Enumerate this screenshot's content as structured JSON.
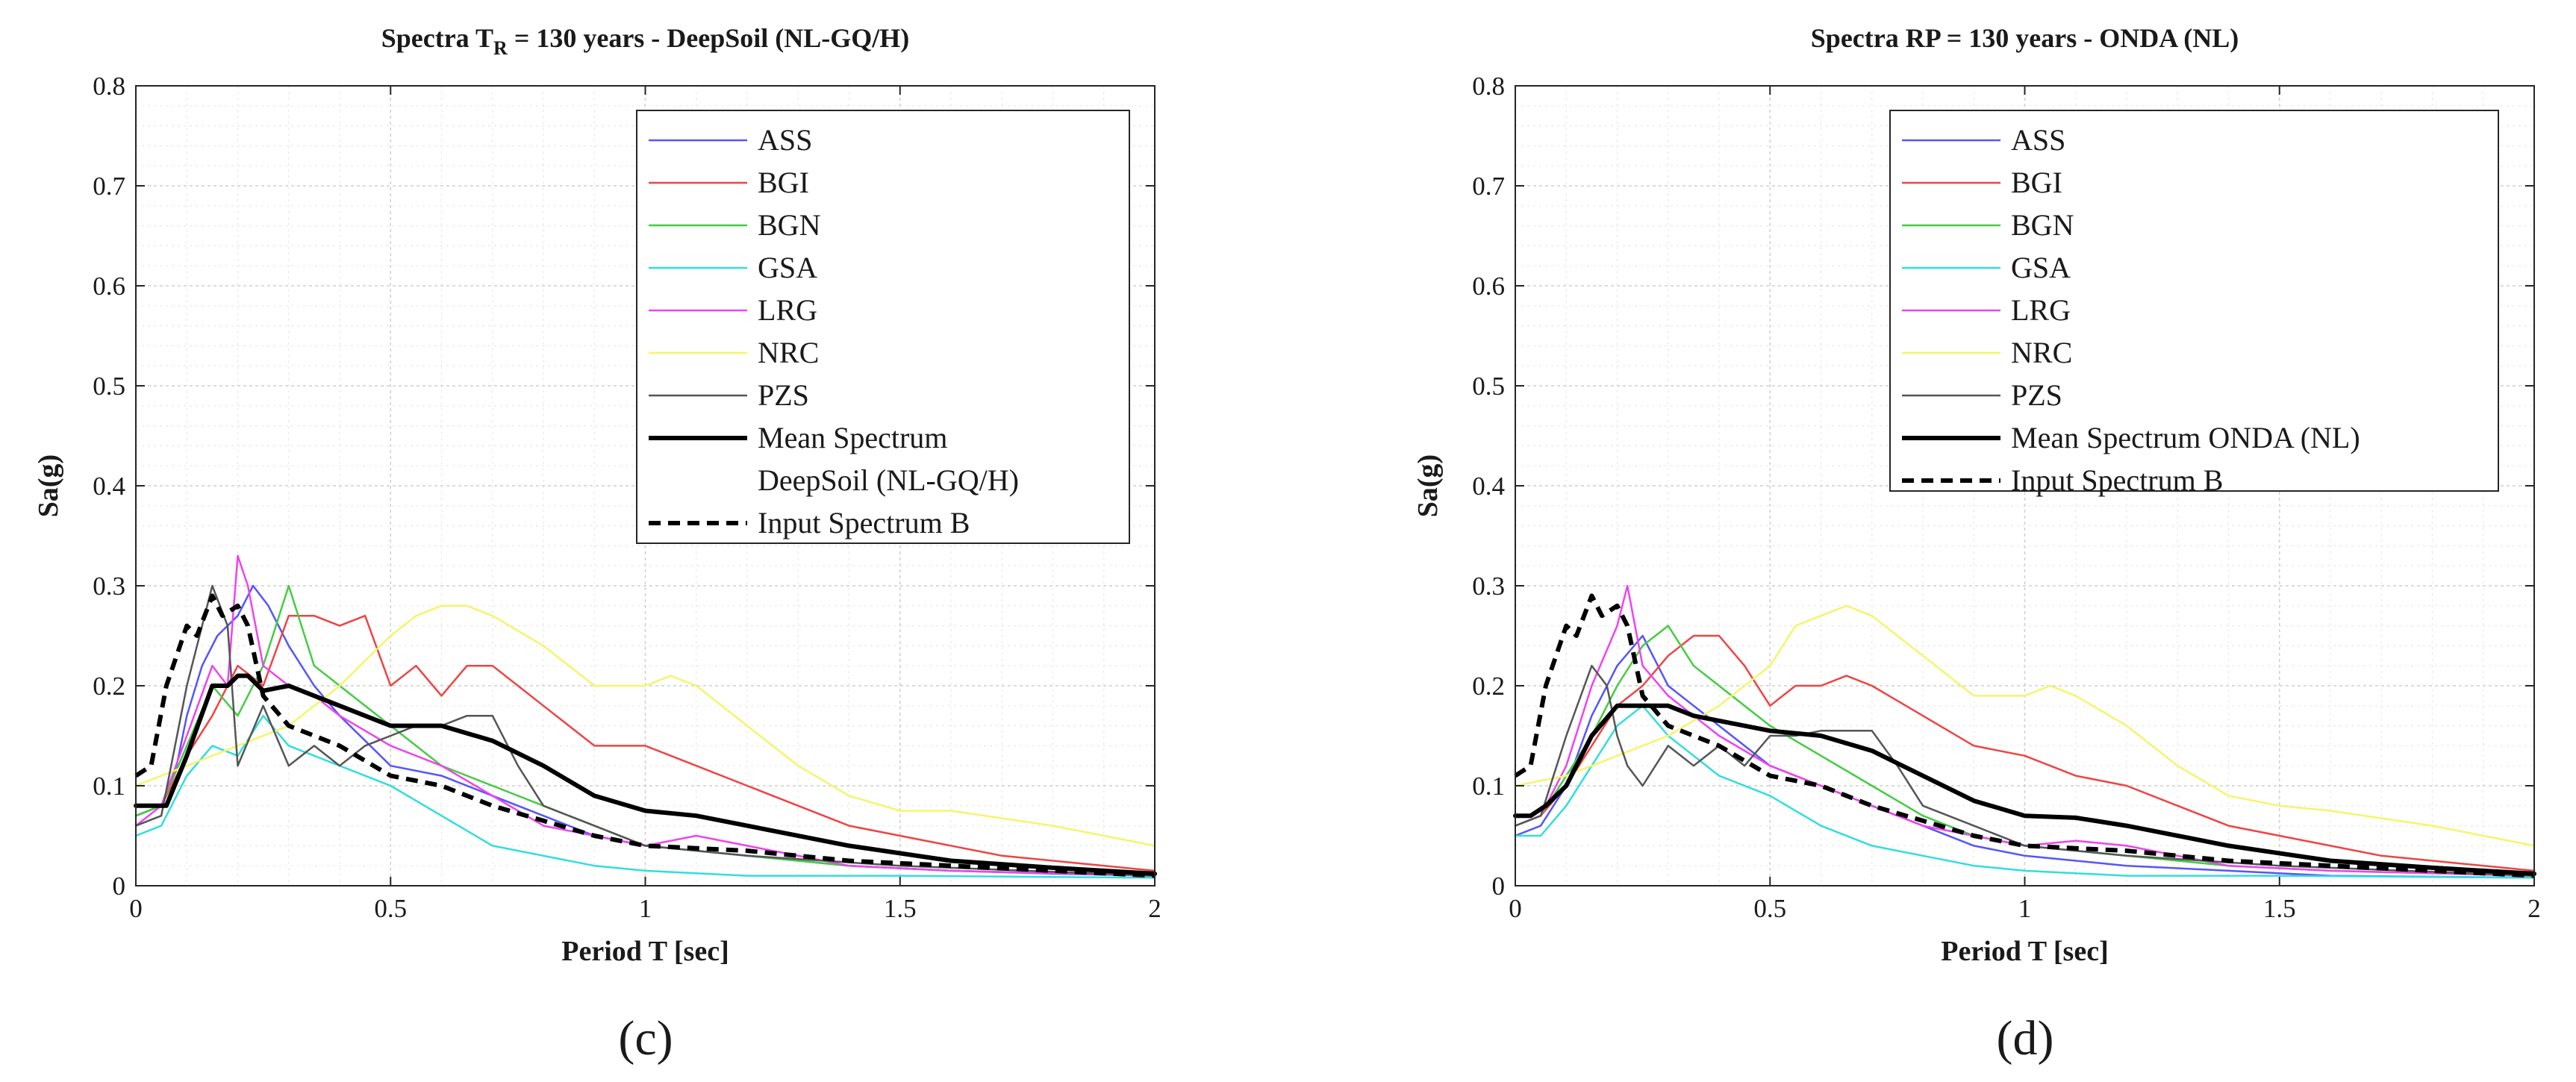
{
  "chart_data": [
    {
      "type": "line",
      "title": "Spectra T",
      "title_sub": "R",
      "title_rest": " = 130 years - DeepSoil (NL-GQ/H)",
      "xlabel": "Period T [sec]",
      "ylabel": "Sa(g)",
      "xlim": [
        0,
        2
      ],
      "ylim": [
        0,
        0.8
      ],
      "xticks": [
        0,
        0.5,
        1,
        1.5,
        2
      ],
      "xtick_labels": [
        "0",
        "0.5",
        "1",
        "1.5",
        "2"
      ],
      "yticks": [
        0,
        0.1,
        0.2,
        0.3,
        0.4,
        0.5,
        0.6,
        0.7,
        0.8
      ],
      "ytick_labels": [
        "0",
        "0.1",
        "0.2",
        "0.3",
        "0.4",
        "0.5",
        "0.6",
        "0.7",
        "0.8"
      ],
      "grid": true,
      "legend_position": "top-right",
      "panel_label": "(c)",
      "series": [
        {
          "name": "ASS",
          "color": "#5555ff",
          "style": "thin",
          "x": [
            0,
            0.05,
            0.08,
            0.1,
            0.13,
            0.16,
            0.2,
            0.23,
            0.26,
            0.3,
            0.35,
            0.4,
            0.5,
            0.6,
            0.7,
            0.8,
            0.9,
            1.0,
            1.1,
            1.2,
            1.4,
            1.6,
            1.8,
            2.0
          ],
          "y": [
            0.07,
            0.08,
            0.12,
            0.17,
            0.22,
            0.25,
            0.27,
            0.3,
            0.28,
            0.24,
            0.2,
            0.17,
            0.12,
            0.11,
            0.09,
            0.07,
            0.05,
            0.04,
            0.035,
            0.03,
            0.02,
            0.015,
            0.012,
            0.01
          ]
        },
        {
          "name": "BGI",
          "color": "#ee4444",
          "style": "thin",
          "x": [
            0,
            0.05,
            0.1,
            0.15,
            0.2,
            0.25,
            0.3,
            0.35,
            0.4,
            0.45,
            0.5,
            0.55,
            0.6,
            0.65,
            0.7,
            0.75,
            0.8,
            0.9,
            1.0,
            1.1,
            1.2,
            1.3,
            1.4,
            1.5,
            1.7,
            2.0
          ],
          "y": [
            0.07,
            0.08,
            0.13,
            0.17,
            0.22,
            0.2,
            0.27,
            0.27,
            0.26,
            0.27,
            0.2,
            0.22,
            0.19,
            0.22,
            0.22,
            0.2,
            0.18,
            0.14,
            0.14,
            0.12,
            0.1,
            0.08,
            0.06,
            0.05,
            0.03,
            0.015
          ]
        },
        {
          "name": "BGN",
          "color": "#44cc44",
          "style": "thin",
          "x": [
            0,
            0.05,
            0.1,
            0.15,
            0.2,
            0.25,
            0.3,
            0.35,
            0.4,
            0.5,
            0.6,
            0.7,
            0.8,
            0.9,
            1.0,
            1.2,
            1.4,
            1.6,
            2.0
          ],
          "y": [
            0.07,
            0.08,
            0.14,
            0.2,
            0.17,
            0.22,
            0.3,
            0.22,
            0.2,
            0.16,
            0.12,
            0.1,
            0.08,
            0.06,
            0.04,
            0.03,
            0.02,
            0.015,
            0.01
          ]
        },
        {
          "name": "GSA",
          "color": "#33dddd",
          "style": "thin",
          "x": [
            0,
            0.05,
            0.1,
            0.15,
            0.2,
            0.25,
            0.3,
            0.35,
            0.4,
            0.5,
            0.6,
            0.7,
            0.8,
            0.9,
            1.0,
            1.2,
            1.5,
            2.0
          ],
          "y": [
            0.05,
            0.06,
            0.11,
            0.14,
            0.13,
            0.17,
            0.14,
            0.13,
            0.12,
            0.1,
            0.07,
            0.04,
            0.03,
            0.02,
            0.015,
            0.01,
            0.01,
            0.008
          ]
        },
        {
          "name": "LRG",
          "color": "#ee44ee",
          "style": "thin",
          "x": [
            0,
            0.05,
            0.1,
            0.15,
            0.18,
            0.2,
            0.22,
            0.25,
            0.3,
            0.35,
            0.4,
            0.5,
            0.6,
            0.7,
            0.8,
            0.9,
            1.0,
            1.1,
            1.2,
            1.4,
            1.6,
            2.0
          ],
          "y": [
            0.06,
            0.08,
            0.15,
            0.22,
            0.2,
            0.33,
            0.3,
            0.22,
            0.2,
            0.19,
            0.17,
            0.14,
            0.12,
            0.09,
            0.06,
            0.05,
            0.04,
            0.05,
            0.04,
            0.02,
            0.015,
            0.01
          ]
        },
        {
          "name": "NRC",
          "color": "#f5f56a",
          "style": "thin",
          "x": [
            0,
            0.1,
            0.2,
            0.3,
            0.4,
            0.5,
            0.55,
            0.6,
            0.65,
            0.7,
            0.8,
            0.9,
            1.0,
            1.05,
            1.1,
            1.2,
            1.3,
            1.4,
            1.5,
            1.6,
            1.8,
            2.0
          ],
          "y": [
            0.1,
            0.12,
            0.14,
            0.16,
            0.2,
            0.25,
            0.27,
            0.28,
            0.28,
            0.27,
            0.24,
            0.2,
            0.2,
            0.21,
            0.2,
            0.16,
            0.12,
            0.09,
            0.075,
            0.075,
            0.06,
            0.04
          ]
        },
        {
          "name": "PZS",
          "color": "#555555",
          "style": "thin",
          "x": [
            0,
            0.05,
            0.1,
            0.15,
            0.18,
            0.2,
            0.25,
            0.3,
            0.35,
            0.4,
            0.45,
            0.5,
            0.55,
            0.6,
            0.65,
            0.7,
            0.75,
            0.8,
            0.9,
            1.0,
            1.2,
            1.5,
            2.0
          ],
          "y": [
            0.06,
            0.07,
            0.2,
            0.3,
            0.26,
            0.12,
            0.18,
            0.12,
            0.14,
            0.12,
            0.14,
            0.15,
            0.16,
            0.16,
            0.17,
            0.17,
            0.12,
            0.08,
            0.06,
            0.04,
            0.03,
            0.02,
            0.01
          ]
        },
        {
          "name": "Mean Spectrum DeepSoil (NL-GQ/H)",
          "legend_lines": [
            "Mean Spectrum",
            "DeepSoil (NL-GQ/H)"
          ],
          "color": "#000000",
          "style": "thick",
          "x": [
            0,
            0.03,
            0.06,
            0.1,
            0.15,
            0.18,
            0.2,
            0.22,
            0.25,
            0.3,
            0.35,
            0.4,
            0.5,
            0.6,
            0.7,
            0.8,
            0.9,
            1.0,
            1.1,
            1.2,
            1.4,
            1.6,
            1.8,
            2.0
          ],
          "y": [
            0.08,
            0.08,
            0.08,
            0.13,
            0.2,
            0.2,
            0.21,
            0.21,
            0.195,
            0.2,
            0.19,
            0.18,
            0.16,
            0.16,
            0.145,
            0.12,
            0.09,
            0.075,
            0.07,
            0.06,
            0.04,
            0.025,
            0.018,
            0.012
          ]
        },
        {
          "name": "Input Spectrum B",
          "color": "#000000",
          "style": "dashed",
          "x": [
            0,
            0.03,
            0.06,
            0.1,
            0.12,
            0.15,
            0.17,
            0.2,
            0.22,
            0.25,
            0.3,
            0.4,
            0.5,
            0.6,
            0.7,
            0.8,
            0.9,
            1.0,
            1.2,
            1.4,
            1.6,
            1.8,
            2.0
          ],
          "y": [
            0.11,
            0.12,
            0.2,
            0.26,
            0.25,
            0.29,
            0.27,
            0.28,
            0.26,
            0.19,
            0.16,
            0.14,
            0.11,
            0.1,
            0.08,
            0.065,
            0.05,
            0.04,
            0.035,
            0.025,
            0.02,
            0.015,
            0.01
          ]
        }
      ]
    },
    {
      "type": "line",
      "title": "Spectra RP = 130 years - ONDA (NL)",
      "title_sub": "",
      "title_rest": "",
      "xlabel": "Period T [sec]",
      "ylabel": "Sa(g)",
      "xlim": [
        0,
        2
      ],
      "ylim": [
        0,
        0.8
      ],
      "xticks": [
        0,
        0.5,
        1,
        1.5,
        2
      ],
      "xtick_labels": [
        "0",
        "0.5",
        "1",
        "1.5",
        "2"
      ],
      "yticks": [
        0,
        0.1,
        0.2,
        0.3,
        0.4,
        0.5,
        0.6,
        0.7,
        0.8
      ],
      "ytick_labels": [
        "0",
        "0.1",
        "0.2",
        "0.3",
        "0.4",
        "0.5",
        "0.6",
        "0.7",
        "0.8"
      ],
      "grid": true,
      "legend_position": "top-right",
      "panel_label": "(d)",
      "series": [
        {
          "name": "ASS",
          "color": "#5555ff",
          "style": "thin",
          "x": [
            0,
            0.05,
            0.1,
            0.15,
            0.2,
            0.25,
            0.3,
            0.35,
            0.4,
            0.5,
            0.6,
            0.7,
            0.8,
            0.9,
            1.0,
            1.2,
            1.4,
            1.6,
            2.0
          ],
          "y": [
            0.05,
            0.06,
            0.1,
            0.17,
            0.22,
            0.25,
            0.2,
            0.18,
            0.16,
            0.12,
            0.1,
            0.08,
            0.06,
            0.04,
            0.03,
            0.02,
            0.015,
            0.01,
            0.008
          ]
        },
        {
          "name": "BGI",
          "color": "#ee4444",
          "style": "thin",
          "x": [
            0,
            0.05,
            0.1,
            0.15,
            0.2,
            0.25,
            0.3,
            0.35,
            0.4,
            0.45,
            0.5,
            0.55,
            0.6,
            0.65,
            0.7,
            0.8,
            0.9,
            1.0,
            1.1,
            1.2,
            1.3,
            1.4,
            1.5,
            1.7,
            2.0
          ],
          "y": [
            0.06,
            0.07,
            0.1,
            0.14,
            0.18,
            0.2,
            0.23,
            0.25,
            0.25,
            0.22,
            0.18,
            0.2,
            0.2,
            0.21,
            0.2,
            0.17,
            0.14,
            0.13,
            0.11,
            0.1,
            0.08,
            0.06,
            0.05,
            0.03,
            0.015
          ]
        },
        {
          "name": "BGN",
          "color": "#44cc44",
          "style": "thin",
          "x": [
            0,
            0.05,
            0.1,
            0.15,
            0.2,
            0.25,
            0.3,
            0.35,
            0.4,
            0.5,
            0.6,
            0.7,
            0.8,
            0.9,
            1.0,
            1.2,
            1.4,
            1.6,
            2.0
          ],
          "y": [
            0.06,
            0.07,
            0.11,
            0.15,
            0.2,
            0.24,
            0.26,
            0.22,
            0.2,
            0.16,
            0.13,
            0.1,
            0.07,
            0.05,
            0.04,
            0.03,
            0.02,
            0.015,
            0.01
          ]
        },
        {
          "name": "GSA",
          "color": "#33dddd",
          "style": "thin",
          "x": [
            0,
            0.05,
            0.1,
            0.15,
            0.2,
            0.25,
            0.3,
            0.35,
            0.4,
            0.5,
            0.6,
            0.7,
            0.8,
            0.9,
            1.0,
            1.2,
            1.5,
            2.0
          ],
          "y": [
            0.05,
            0.05,
            0.08,
            0.12,
            0.16,
            0.18,
            0.15,
            0.13,
            0.11,
            0.09,
            0.06,
            0.04,
            0.03,
            0.02,
            0.015,
            0.01,
            0.01,
            0.008
          ]
        },
        {
          "name": "LRG",
          "color": "#ee44ee",
          "style": "thin",
          "x": [
            0,
            0.05,
            0.1,
            0.15,
            0.2,
            0.22,
            0.25,
            0.3,
            0.35,
            0.4,
            0.5,
            0.6,
            0.7,
            0.8,
            0.9,
            1.0,
            1.1,
            1.2,
            1.4,
            1.6,
            2.0
          ],
          "y": [
            0.06,
            0.07,
            0.12,
            0.2,
            0.26,
            0.3,
            0.22,
            0.19,
            0.17,
            0.15,
            0.12,
            0.1,
            0.08,
            0.06,
            0.05,
            0.04,
            0.045,
            0.04,
            0.02,
            0.015,
            0.01
          ]
        },
        {
          "name": "NRC",
          "color": "#f5f56a",
          "style": "thin",
          "x": [
            0,
            0.1,
            0.2,
            0.3,
            0.4,
            0.5,
            0.55,
            0.6,
            0.65,
            0.7,
            0.8,
            0.9,
            1.0,
            1.05,
            1.1,
            1.2,
            1.3,
            1.4,
            1.5,
            1.6,
            1.8,
            2.0
          ],
          "y": [
            0.1,
            0.11,
            0.13,
            0.15,
            0.18,
            0.22,
            0.26,
            0.27,
            0.28,
            0.27,
            0.23,
            0.19,
            0.19,
            0.2,
            0.19,
            0.16,
            0.12,
            0.09,
            0.08,
            0.075,
            0.06,
            0.04
          ]
        },
        {
          "name": "PZS",
          "color": "#555555",
          "style": "thin",
          "x": [
            0,
            0.05,
            0.1,
            0.15,
            0.18,
            0.2,
            0.22,
            0.25,
            0.3,
            0.35,
            0.4,
            0.45,
            0.5,
            0.55,
            0.6,
            0.65,
            0.7,
            0.75,
            0.8,
            0.9,
            1.0,
            1.2,
            1.5,
            2.0
          ],
          "y": [
            0.06,
            0.07,
            0.15,
            0.22,
            0.2,
            0.15,
            0.12,
            0.1,
            0.14,
            0.12,
            0.14,
            0.12,
            0.15,
            0.15,
            0.155,
            0.155,
            0.155,
            0.12,
            0.08,
            0.06,
            0.04,
            0.03,
            0.02,
            0.01
          ]
        },
        {
          "name": "Mean Spectrum ONDA (NL)",
          "legend_lines": [
            "Mean Spectrum ONDA (NL)"
          ],
          "color": "#000000",
          "style": "thick",
          "x": [
            0,
            0.03,
            0.06,
            0.1,
            0.15,
            0.2,
            0.25,
            0.3,
            0.35,
            0.4,
            0.5,
            0.6,
            0.7,
            0.8,
            0.9,
            1.0,
            1.1,
            1.2,
            1.4,
            1.6,
            1.8,
            2.0
          ],
          "y": [
            0.07,
            0.07,
            0.08,
            0.1,
            0.15,
            0.18,
            0.18,
            0.18,
            0.17,
            0.165,
            0.155,
            0.15,
            0.135,
            0.11,
            0.085,
            0.07,
            0.068,
            0.06,
            0.04,
            0.025,
            0.018,
            0.012
          ]
        },
        {
          "name": "Input Spectrum B",
          "color": "#000000",
          "style": "dashed",
          "x": [
            0,
            0.03,
            0.06,
            0.1,
            0.12,
            0.15,
            0.17,
            0.2,
            0.22,
            0.25,
            0.3,
            0.4,
            0.5,
            0.6,
            0.7,
            0.8,
            0.9,
            1.0,
            1.2,
            1.4,
            1.6,
            1.8,
            2.0
          ],
          "y": [
            0.11,
            0.12,
            0.2,
            0.26,
            0.25,
            0.29,
            0.27,
            0.28,
            0.26,
            0.19,
            0.16,
            0.14,
            0.11,
            0.1,
            0.08,
            0.065,
            0.05,
            0.04,
            0.035,
            0.025,
            0.02,
            0.015,
            0.01
          ]
        }
      ]
    }
  ]
}
